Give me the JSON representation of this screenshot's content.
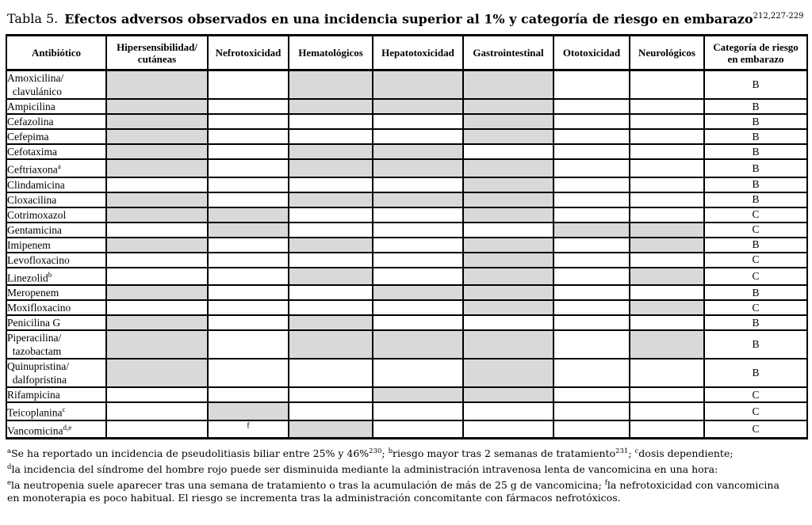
{
  "title": {
    "label": "Tabla 5.",
    "caption": "Efectos adversos observados en una incidencia superior al 1% y categoría de riesgo en embarazo",
    "citation": "212,227-229"
  },
  "colors": {
    "shaded_cell": "#d9d9d9",
    "border": "#000000",
    "background": "#ffffff"
  },
  "table": {
    "columns": [
      "Antibiótico",
      "Hipersensibilidad/\ncutáneas",
      "Nefrotoxicidad",
      "Hematológicos",
      "Hepatotoxicidad",
      "Gastrointestinal",
      "Ototoxicidad",
      "Neurológicos",
      "Categoría de riesgo\nen embarazo"
    ],
    "effect_keys": [
      "hipersensibilidad_cutaneas",
      "nefrotoxicidad",
      "hematologicos",
      "hepatotoxicidad",
      "gastrointestinal",
      "ototoxicidad",
      "neurologicos"
    ],
    "shaded_means": "efecto adverso observado (celda sombreada)",
    "rows": [
      {
        "name": "Amoxicilina/\n  clavulánico",
        "sup": "",
        "effects": [
          1,
          0,
          1,
          1,
          1,
          0,
          0
        ],
        "category": "B"
      },
      {
        "name": "Ampicilina",
        "sup": "",
        "effects": [
          1,
          0,
          1,
          1,
          1,
          0,
          0
        ],
        "category": "B"
      },
      {
        "name": "Cefazolina",
        "sup": "",
        "effects": [
          1,
          0,
          0,
          0,
          1,
          0,
          0
        ],
        "category": "B"
      },
      {
        "name": "Cefepima",
        "sup": "",
        "effects": [
          1,
          0,
          0,
          0,
          1,
          0,
          0
        ],
        "category": "B"
      },
      {
        "name": "Cefotaxima",
        "sup": "",
        "effects": [
          1,
          0,
          1,
          1,
          0,
          0,
          0
        ],
        "category": "B"
      },
      {
        "name": "Ceftriaxona",
        "sup": "a",
        "effects": [
          1,
          0,
          1,
          1,
          1,
          0,
          0
        ],
        "category": "B"
      },
      {
        "name": "Clindamicina",
        "sup": "",
        "effects": [
          0,
          0,
          0,
          0,
          1,
          0,
          0
        ],
        "category": "B"
      },
      {
        "name": "Cloxacilina",
        "sup": "",
        "effects": [
          1,
          0,
          1,
          1,
          1,
          0,
          0
        ],
        "category": "B"
      },
      {
        "name": "Cotrimoxazol",
        "sup": "",
        "effects": [
          1,
          1,
          0,
          0,
          1,
          0,
          0
        ],
        "category": "C"
      },
      {
        "name": "Gentamicina",
        "sup": "",
        "effects": [
          0,
          1,
          0,
          0,
          0,
          1,
          1
        ],
        "category": "C"
      },
      {
        "name": "Imipenem",
        "sup": "",
        "effects": [
          1,
          0,
          1,
          0,
          1,
          0,
          1
        ],
        "category": "B"
      },
      {
        "name": "Levofloxacino",
        "sup": "",
        "effects": [
          0,
          0,
          0,
          0,
          1,
          0,
          0
        ],
        "category": "C"
      },
      {
        "name": "Linezolid",
        "sup": "b",
        "effects": [
          0,
          0,
          1,
          0,
          1,
          0,
          1
        ],
        "category": "C"
      },
      {
        "name": "Meropenem",
        "sup": "",
        "effects": [
          1,
          0,
          0,
          1,
          1,
          0,
          0
        ],
        "category": "B"
      },
      {
        "name": "Moxifloxacino",
        "sup": "",
        "effects": [
          0,
          0,
          0,
          0,
          1,
          0,
          1
        ],
        "category": "C"
      },
      {
        "name": "Penicilina G",
        "sup": "",
        "effects": [
          1,
          0,
          1,
          0,
          0,
          0,
          0
        ],
        "category": "B"
      },
      {
        "name": "Piperacilina/\n  tazobactam",
        "sup": "",
        "effects": [
          1,
          0,
          1,
          1,
          1,
          0,
          1
        ],
        "category": "B"
      },
      {
        "name": "Quinupristina/\n  dalfopristina",
        "sup": "",
        "effects": [
          1,
          0,
          0,
          0,
          1,
          0,
          0
        ],
        "category": "B"
      },
      {
        "name": "Rifampicina",
        "sup": "",
        "effects": [
          0,
          0,
          0,
          1,
          1,
          0,
          0
        ],
        "category": "C"
      },
      {
        "name": "Teicoplanina",
        "sup": "c",
        "effects": [
          0,
          1,
          0,
          0,
          0,
          0,
          0
        ],
        "category": "C"
      },
      {
        "name": "Vancomicina",
        "sup": "d,e",
        "effects": [
          0,
          "f",
          1,
          0,
          0,
          0,
          0
        ],
        "category": "C"
      }
    ]
  },
  "footnotes": [
    [
      {
        "s": "a"
      },
      {
        "t": "Se ha reportado un incidencia de pseudolitiasis biliar entre 25% y 46%"
      },
      {
        "s": "230"
      },
      {
        "t": "; "
      },
      {
        "s": "b"
      },
      {
        "t": "riesgo mayor tras 2 semanas de tratamiento"
      },
      {
        "s": "231"
      },
      {
        "t": "; "
      },
      {
        "s": "c"
      },
      {
        "t": "dosis dependiente;"
      }
    ],
    [
      {
        "s": "d"
      },
      {
        "t": "la incidencia del síndrome del hombre rojo puede ser disminuida mediante la administración intravenosa lenta de vancomicina en una hora:"
      }
    ],
    [
      {
        "s": "e"
      },
      {
        "t": "la neutropenia suele aparecer tras una semana de tratamiento o tras la acumulación de más de 25 g de vancomicina; "
      },
      {
        "s": "f"
      },
      {
        "t": "la nefrotoxicidad con vancomicina"
      }
    ],
    [
      {
        "t": "en monoterapia es poco habitual. El riesgo se incrementa tras la administración concomitante con fármacos nefrotóxicos."
      }
    ]
  ]
}
